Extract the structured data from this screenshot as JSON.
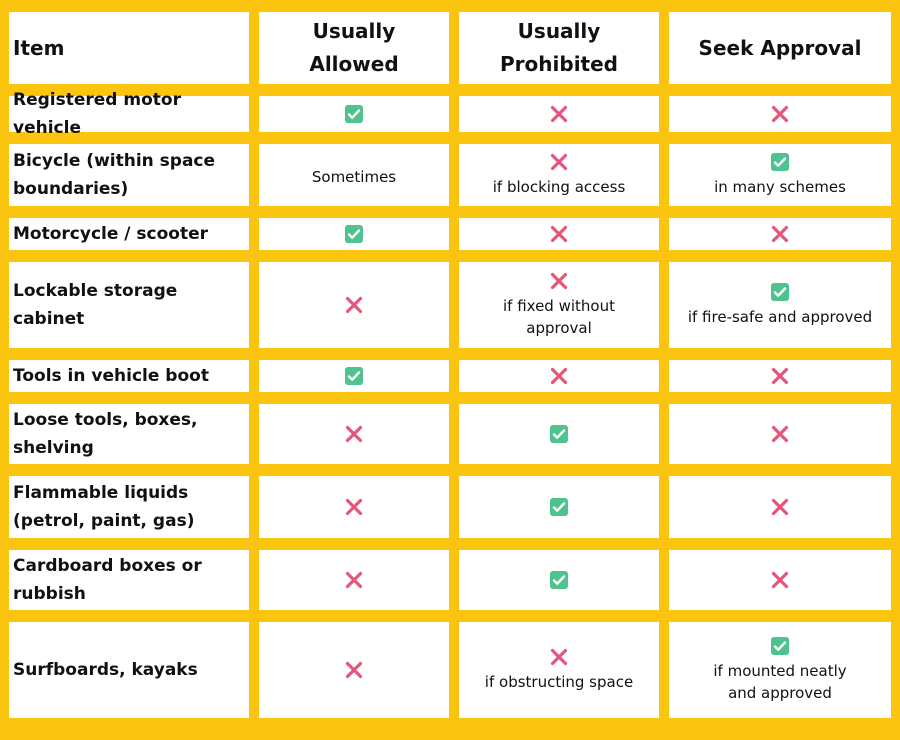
{
  "table": {
    "header": [
      "Item",
      "Usually Allowed",
      "Usually Prohibited",
      "Seek Approval"
    ],
    "rows": [
      {
        "item": "Registered motor vehicle"
      },
      {
        "item": "Bicycle (within space boundaries)",
        "allowed_note": "Sometimes",
        "prohibited_note": "if blocking access",
        "approval_note": "in many schemes"
      },
      {
        "item": "Motorcycle / scooter"
      },
      {
        "item": "Lockable storage cabinet",
        "prohibited_note": "if fixed without approval",
        "approval_note": "if fire-safe and approved"
      },
      {
        "item": "Tools in vehicle boot"
      },
      {
        "item": "Loose tools, boxes, shelving"
      },
      {
        "item": "Flammable liquids (petrol, paint, gas)"
      },
      {
        "item": "Cardboard boxes or rubbish"
      },
      {
        "item": "Surfboards, kayaks",
        "prohibited_note": "if obstructing space",
        "approval_note": "if mounted neatly and approved"
      }
    ]
  }
}
